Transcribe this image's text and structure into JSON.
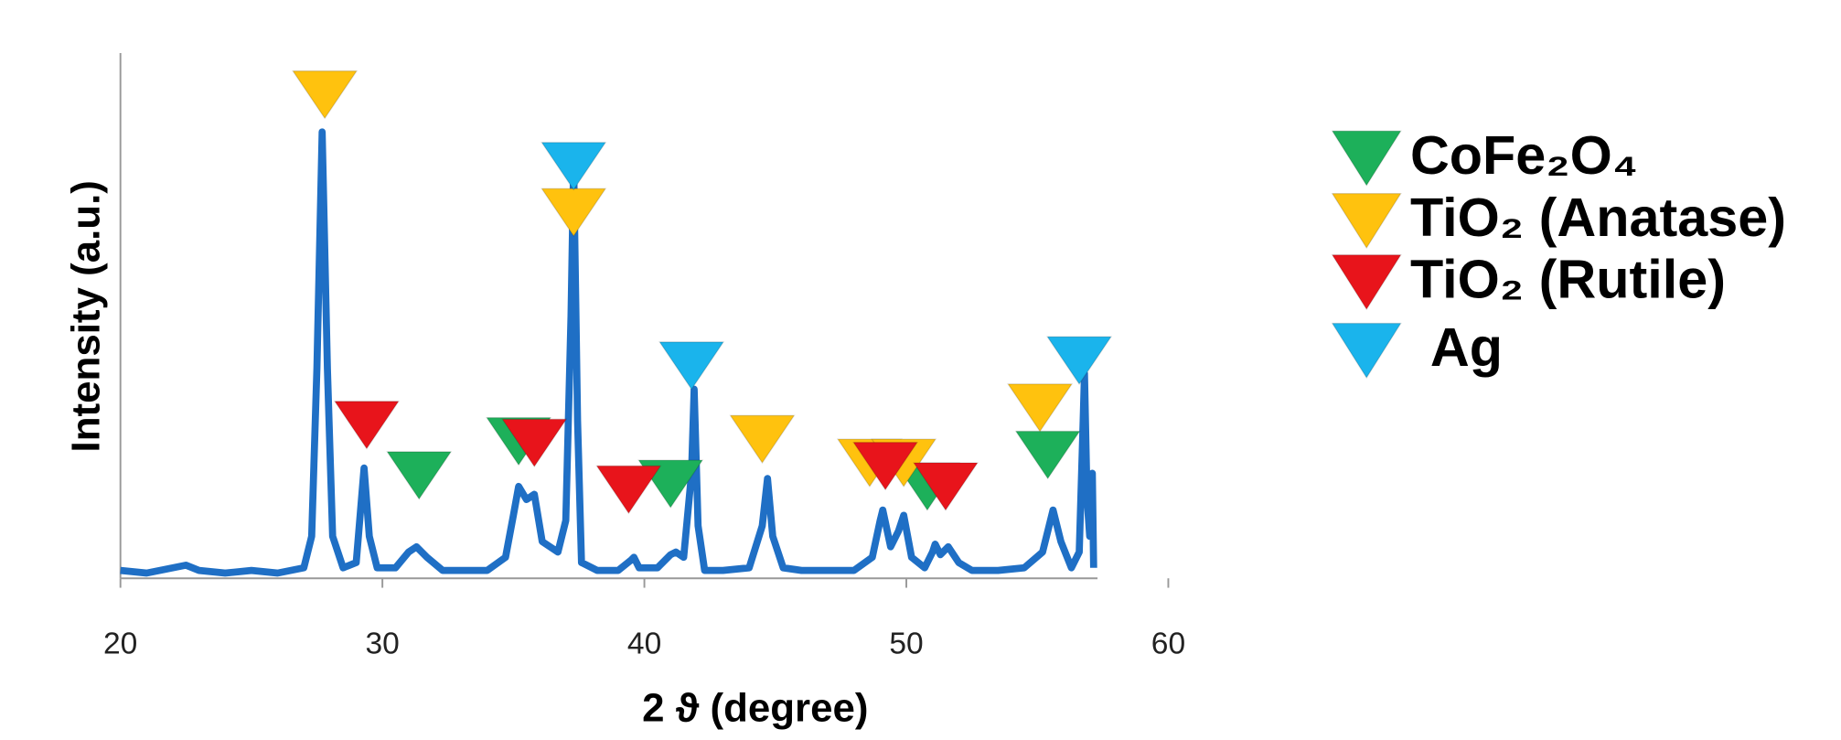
{
  "chart_data": {
    "type": "line",
    "x_label": "2 ϑ (degree)",
    "y_label": "Intensity (a.u.)",
    "xlim": [
      20,
      60
    ],
    "xticks": [
      20,
      30,
      40,
      50,
      60
    ],
    "ylim": [
      0,
      100
    ],
    "color": "#1f6fc5",
    "x": [
      20,
      21,
      22,
      22.5,
      23,
      24,
      25,
      26,
      27,
      27.3,
      27.5,
      27.7,
      27.9,
      28.1,
      28.5,
      29.0,
      29.2,
      29.3,
      29.5,
      29.8,
      30.5,
      31.0,
      31.3,
      31.7,
      32.3,
      33,
      34,
      34.7,
      35.0,
      35.2,
      35.5,
      35.8,
      36.1,
      36.4,
      36.7,
      37.0,
      37.2,
      37.3,
      37.45,
      37.6,
      38.2,
      39,
      39.5,
      39.6,
      39.8,
      40.5,
      41.0,
      41.2,
      41.5,
      41.8,
      41.9,
      42.05,
      42.3,
      43,
      44,
      44.5,
      44.7,
      44.9,
      45.3,
      46,
      47,
      48,
      48.7,
      49.0,
      49.1,
      49.4,
      49.7,
      49.9,
      50.2,
      50.7,
      51.0,
      51.1,
      51.3,
      51.6,
      52.0,
      52.5,
      53.5,
      54.5,
      55.2,
      55.6,
      55.9,
      56.3,
      56.6,
      56.75,
      56.8,
      56.9,
      57.0,
      57.1,
      57.15
    ],
    "values": [
      1.5,
      1,
      2,
      2.5,
      1.5,
      1,
      1.5,
      1,
      2,
      8,
      40,
      85,
      40,
      8,
      2,
      3,
      15,
      21,
      8,
      2,
      2,
      5,
      6,
      4,
      1.5,
      1.5,
      1.5,
      4,
      12,
      17.5,
      15,
      16,
      7,
      6,
      5,
      11,
      50,
      79,
      30,
      3,
      1.5,
      1.5,
      3.5,
      4,
      2,
      2,
      4.5,
      5,
      4,
      20,
      36,
      10,
      1.5,
      1.5,
      2,
      10,
      19,
      8,
      2,
      1.5,
      1.5,
      1.5,
      4,
      11,
      13,
      6,
      9,
      12,
      4,
      2,
      5,
      6.5,
      4.5,
      6,
      3,
      1.5,
      1.5,
      2,
      5,
      13,
      7,
      2,
      5,
      30,
      39,
      15,
      8,
      20,
      2
    ],
    "markers": [
      {
        "name": "CoFe₂O₄",
        "color": "#1db05a",
        "x": [
          31.4,
          35.2,
          41.0,
          50.8,
          55.4
        ],
        "y": [
          15.1,
          21.6,
          13.5,
          13,
          19
        ]
      },
      {
        "name": "TiO₂ (Anatase)",
        "color": "#ffc20e",
        "x": [
          27.8,
          37.3,
          44.5,
          48.6,
          49.9,
          55.1
        ],
        "y": [
          87.6,
          65.2,
          22,
          17.5,
          17.5,
          28
        ]
      },
      {
        "name": "TiO₂ (Rutile)",
        "color": "#e8141b",
        "x": [
          29.4,
          35.8,
          39.4,
          49.2,
          51.5
        ],
        "y": [
          24.7,
          21.3,
          12.4,
          16.9,
          13
        ]
      },
      {
        "name": "Ag",
        "color": "#1ab4ec",
        "x": [
          37.3,
          41.8,
          56.6
        ],
        "y": [
          74,
          36,
          37
        ]
      }
    ]
  }
}
